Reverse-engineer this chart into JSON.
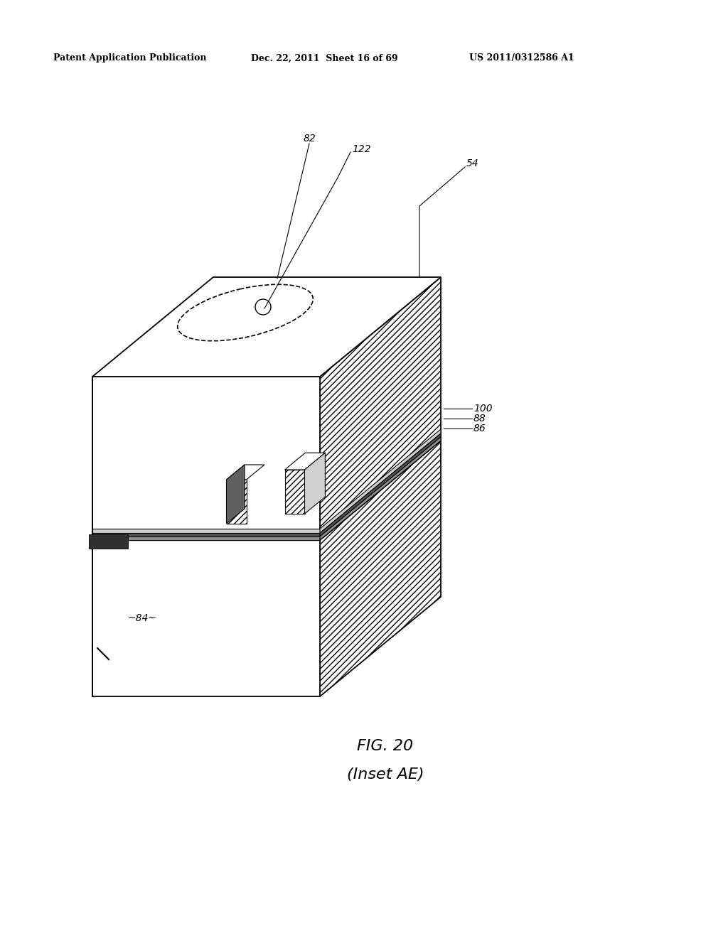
{
  "header_left": "Patent Application Publication",
  "header_mid": "Dec. 22, 2011  Sheet 16 of 69",
  "header_right": "US 2011/0312586 A1",
  "bg_color": "#ffffff",
  "fig_caption_line1": "FIG. 20",
  "fig_caption_line2": "(Inset AE)",
  "lw_main": 1.3,
  "lw_thin": 0.8,
  "upper_hatch": "////",
  "lower_hatch": "////",
  "upper_hatch_color": "#888888",
  "layer_colors": [
    "#c0c0c0",
    "#808080",
    "#606060"
  ],
  "label_fontsize": 10,
  "header_fontsize": 9
}
